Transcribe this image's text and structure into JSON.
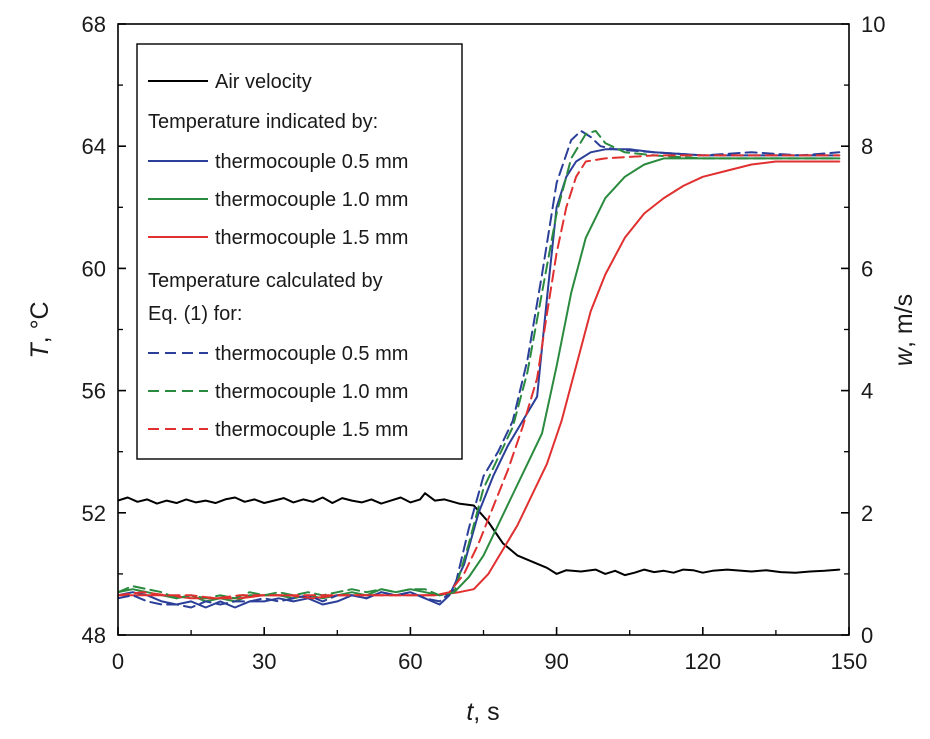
{
  "chart_data": {
    "type": "line",
    "xlabel": {
      "var": "t",
      "unit": ", s"
    },
    "ylabel_left": {
      "var": "T",
      "unit": ", °C"
    },
    "ylabel_right": {
      "var": "w",
      "unit": ", m/s"
    },
    "xlim": [
      0,
      150
    ],
    "ylim_left": [
      48,
      68
    ],
    "ylim_right": [
      0,
      10
    ],
    "x_ticks": [
      0,
      30,
      60,
      90,
      120,
      150
    ],
    "y_left_ticks": [
      48,
      52,
      56,
      60,
      64,
      68
    ],
    "y_right_ticks": [
      0,
      2,
      4,
      6,
      8,
      10
    ],
    "grid": false,
    "legend_position": "top-left",
    "legend_headers": [
      "Temperature indicated by:",
      "Temperature calculated by",
      "Eq. (1) for:"
    ],
    "series": [
      {
        "name": "Air velocity",
        "axis": "right",
        "color": "#000000",
        "dash": "solid",
        "points": [
          [
            0,
            2.2
          ],
          [
            2,
            2.25
          ],
          [
            4,
            2.18
          ],
          [
            6,
            2.22
          ],
          [
            8,
            2.15
          ],
          [
            10,
            2.2
          ],
          [
            12,
            2.16
          ],
          [
            14,
            2.22
          ],
          [
            16,
            2.17
          ],
          [
            18,
            2.2
          ],
          [
            20,
            2.16
          ],
          [
            22,
            2.22
          ],
          [
            24,
            2.25
          ],
          [
            26,
            2.18
          ],
          [
            28,
            2.22
          ],
          [
            30,
            2.16
          ],
          [
            32,
            2.2
          ],
          [
            34,
            2.24
          ],
          [
            36,
            2.17
          ],
          [
            38,
            2.22
          ],
          [
            40,
            2.18
          ],
          [
            42,
            2.25
          ],
          [
            44,
            2.16
          ],
          [
            46,
            2.24
          ],
          [
            48,
            2.2
          ],
          [
            50,
            2.17
          ],
          [
            52,
            2.22
          ],
          [
            54,
            2.15
          ],
          [
            56,
            2.2
          ],
          [
            58,
            2.25
          ],
          [
            60,
            2.17
          ],
          [
            62,
            2.22
          ],
          [
            63,
            2.32
          ],
          [
            65,
            2.2
          ],
          [
            67,
            2.22
          ],
          [
            70,
            2.15
          ],
          [
            73,
            2.12
          ],
          [
            76,
            1.85
          ],
          [
            79,
            1.5
          ],
          [
            82,
            1.3
          ],
          [
            85,
            1.2
          ],
          [
            88,
            1.1
          ],
          [
            90,
            1.0
          ],
          [
            92,
            1.06
          ],
          [
            95,
            1.04
          ],
          [
            98,
            1.07
          ],
          [
            100,
            1.0
          ],
          [
            102,
            1.05
          ],
          [
            104,
            0.98
          ],
          [
            106,
            1.02
          ],
          [
            108,
            1.07
          ],
          [
            110,
            1.03
          ],
          [
            112,
            1.05
          ],
          [
            114,
            1.02
          ],
          [
            116,
            1.07
          ],
          [
            118,
            1.06
          ],
          [
            120,
            1.02
          ],
          [
            122,
            1.05
          ],
          [
            125,
            1.07
          ],
          [
            128,
            1.05
          ],
          [
            130,
            1.04
          ],
          [
            133,
            1.06
          ],
          [
            136,
            1.03
          ],
          [
            139,
            1.02
          ],
          [
            142,
            1.04
          ],
          [
            145,
            1.05
          ],
          [
            148,
            1.07
          ]
        ]
      },
      {
        "name": "thermocouple 0.5 mm",
        "axis": "left",
        "color": "#2b3f99",
        "dash": "solid",
        "points": [
          [
            0,
            49.3
          ],
          [
            3,
            49.4
          ],
          [
            6,
            49.3
          ],
          [
            9,
            49.1
          ],
          [
            12,
            49.0
          ],
          [
            15,
            49.1
          ],
          [
            18,
            48.9
          ],
          [
            21,
            49.1
          ],
          [
            24,
            48.9
          ],
          [
            27,
            49.1
          ],
          [
            30,
            49.1
          ],
          [
            33,
            49.2
          ],
          [
            36,
            49.1
          ],
          [
            39,
            49.2
          ],
          [
            42,
            49.0
          ],
          [
            45,
            49.1
          ],
          [
            48,
            49.3
          ],
          [
            51,
            49.2
          ],
          [
            54,
            49.4
          ],
          [
            57,
            49.3
          ],
          [
            60,
            49.4
          ],
          [
            63,
            49.2
          ],
          [
            66,
            49.0
          ],
          [
            68,
            49.3
          ],
          [
            71,
            50.3
          ],
          [
            74,
            52.0
          ],
          [
            77,
            53.2
          ],
          [
            80,
            54.2
          ],
          [
            83,
            55.0
          ],
          [
            86,
            55.8
          ],
          [
            88,
            59.0
          ],
          [
            90,
            62.0
          ],
          [
            92,
            63.0
          ],
          [
            94,
            63.5
          ],
          [
            97,
            63.8
          ],
          [
            100,
            63.9
          ],
          [
            105,
            63.9
          ],
          [
            110,
            63.8
          ],
          [
            120,
            63.7
          ],
          [
            130,
            63.7
          ],
          [
            140,
            63.7
          ],
          [
            148,
            63.7
          ]
        ]
      },
      {
        "name": "thermocouple 1.0 mm",
        "axis": "left",
        "color": "#2a8a3e",
        "dash": "solid",
        "points": [
          [
            0,
            49.4
          ],
          [
            3,
            49.5
          ],
          [
            6,
            49.4
          ],
          [
            9,
            49.3
          ],
          [
            12,
            49.2
          ],
          [
            15,
            49.3
          ],
          [
            18,
            49.1
          ],
          [
            21,
            49.2
          ],
          [
            24,
            49.1
          ],
          [
            27,
            49.3
          ],
          [
            30,
            49.3
          ],
          [
            33,
            49.3
          ],
          [
            36,
            49.2
          ],
          [
            39,
            49.3
          ],
          [
            42,
            49.2
          ],
          [
            45,
            49.3
          ],
          [
            48,
            49.4
          ],
          [
            51,
            49.3
          ],
          [
            54,
            49.5
          ],
          [
            57,
            49.4
          ],
          [
            60,
            49.5
          ],
          [
            63,
            49.4
          ],
          [
            66,
            49.3
          ],
          [
            69,
            49.4
          ],
          [
            72,
            49.9
          ],
          [
            75,
            50.6
          ],
          [
            78,
            51.6
          ],
          [
            81,
            52.6
          ],
          [
            84,
            53.6
          ],
          [
            87,
            54.6
          ],
          [
            90,
            56.8
          ],
          [
            93,
            59.2
          ],
          [
            96,
            61.0
          ],
          [
            100,
            62.3
          ],
          [
            104,
            63.0
          ],
          [
            108,
            63.4
          ],
          [
            112,
            63.6
          ],
          [
            120,
            63.6
          ],
          [
            130,
            63.6
          ],
          [
            140,
            63.6
          ],
          [
            148,
            63.6
          ]
        ]
      },
      {
        "name": "thermocouple 1.5 mm",
        "axis": "left",
        "color": "#e03030",
        "dash": "solid",
        "points": [
          [
            0,
            49.3
          ],
          [
            5,
            49.3
          ],
          [
            10,
            49.3
          ],
          [
            15,
            49.2
          ],
          [
            20,
            49.2
          ],
          [
            25,
            49.2
          ],
          [
            30,
            49.3
          ],
          [
            35,
            49.3
          ],
          [
            40,
            49.2
          ],
          [
            45,
            49.3
          ],
          [
            50,
            49.3
          ],
          [
            55,
            49.3
          ],
          [
            60,
            49.3
          ],
          [
            65,
            49.3
          ],
          [
            70,
            49.4
          ],
          [
            73,
            49.5
          ],
          [
            76,
            50.0
          ],
          [
            79,
            50.8
          ],
          [
            82,
            51.6
          ],
          [
            85,
            52.6
          ],
          [
            88,
            53.6
          ],
          [
            91,
            55.0
          ],
          [
            94,
            56.8
          ],
          [
            97,
            58.6
          ],
          [
            100,
            59.8
          ],
          [
            104,
            61.0
          ],
          [
            108,
            61.8
          ],
          [
            112,
            62.3
          ],
          [
            116,
            62.7
          ],
          [
            120,
            63.0
          ],
          [
            125,
            63.2
          ],
          [
            130,
            63.4
          ],
          [
            135,
            63.5
          ],
          [
            140,
            63.5
          ],
          [
            148,
            63.5
          ]
        ]
      },
      {
        "name": "thermocouple 0.5 mm",
        "axis": "left",
        "color": "#2b3f99",
        "dash": "dashed",
        "points": [
          [
            0,
            49.2
          ],
          [
            3,
            49.3
          ],
          [
            6,
            49.1
          ],
          [
            9,
            49.0
          ],
          [
            12,
            49.0
          ],
          [
            15,
            48.9
          ],
          [
            18,
            49.1
          ],
          [
            21,
            49.0
          ],
          [
            24,
            49.1
          ],
          [
            27,
            49.1
          ],
          [
            30,
            49.2
          ],
          [
            33,
            49.1
          ],
          [
            36,
            49.2
          ],
          [
            39,
            49.3
          ],
          [
            42,
            49.1
          ],
          [
            45,
            49.3
          ],
          [
            48,
            49.3
          ],
          [
            51,
            49.2
          ],
          [
            54,
            49.4
          ],
          [
            57,
            49.3
          ],
          [
            60,
            49.4
          ],
          [
            63,
            49.2
          ],
          [
            66,
            49.1
          ],
          [
            69,
            49.5
          ],
          [
            72,
            51.5
          ],
          [
            75,
            53.2
          ],
          [
            78,
            54.0
          ],
          [
            81,
            55.0
          ],
          [
            84,
            57.0
          ],
          [
            87,
            59.8
          ],
          [
            90,
            62.8
          ],
          [
            93,
            64.2
          ],
          [
            95,
            64.5
          ],
          [
            97,
            64.3
          ],
          [
            99,
            64.0
          ],
          [
            102,
            63.9
          ],
          [
            110,
            63.8
          ],
          [
            120,
            63.7
          ],
          [
            130,
            63.8
          ],
          [
            140,
            63.7
          ],
          [
            148,
            63.8
          ]
        ]
      },
      {
        "name": "thermocouple 1.0 mm",
        "axis": "left",
        "color": "#2a8a3e",
        "dash": "dashed",
        "points": [
          [
            0,
            49.4
          ],
          [
            3,
            49.6
          ],
          [
            6,
            49.5
          ],
          [
            9,
            49.4
          ],
          [
            12,
            49.2
          ],
          [
            15,
            49.3
          ],
          [
            18,
            49.2
          ],
          [
            21,
            49.3
          ],
          [
            24,
            49.2
          ],
          [
            27,
            49.4
          ],
          [
            30,
            49.3
          ],
          [
            33,
            49.4
          ],
          [
            36,
            49.3
          ],
          [
            39,
            49.4
          ],
          [
            42,
            49.3
          ],
          [
            45,
            49.4
          ],
          [
            48,
            49.5
          ],
          [
            51,
            49.4
          ],
          [
            54,
            49.5
          ],
          [
            57,
            49.4
          ],
          [
            60,
            49.5
          ],
          [
            63,
            49.5
          ],
          [
            66,
            49.3
          ],
          [
            69,
            49.4
          ],
          [
            72,
            51.0
          ],
          [
            75,
            52.8
          ],
          [
            78,
            53.8
          ],
          [
            81,
            54.8
          ],
          [
            84,
            56.6
          ],
          [
            87,
            59.2
          ],
          [
            90,
            61.8
          ],
          [
            93,
            63.6
          ],
          [
            96,
            64.4
          ],
          [
            98,
            64.5
          ],
          [
            100,
            64.1
          ],
          [
            104,
            63.8
          ],
          [
            110,
            63.7
          ],
          [
            120,
            63.6
          ],
          [
            130,
            63.6
          ],
          [
            140,
            63.6
          ],
          [
            148,
            63.6
          ]
        ]
      },
      {
        "name": "thermocouple 1.5 mm",
        "axis": "left",
        "color": "#e03030",
        "dash": "dashed",
        "points": [
          [
            0,
            49.3
          ],
          [
            5,
            49.4
          ],
          [
            10,
            49.3
          ],
          [
            15,
            49.3
          ],
          [
            20,
            49.2
          ],
          [
            25,
            49.3
          ],
          [
            30,
            49.3
          ],
          [
            35,
            49.3
          ],
          [
            40,
            49.3
          ],
          [
            45,
            49.3
          ],
          [
            50,
            49.3
          ],
          [
            55,
            49.3
          ],
          [
            60,
            49.3
          ],
          [
            65,
            49.3
          ],
          [
            68,
            49.4
          ],
          [
            71,
            50.0
          ],
          [
            74,
            51.0
          ],
          [
            77,
            52.2
          ],
          [
            80,
            53.4
          ],
          [
            83,
            54.8
          ],
          [
            86,
            56.4
          ],
          [
            88,
            58.5
          ],
          [
            90,
            60.5
          ],
          [
            92,
            62.0
          ],
          [
            94,
            63.0
          ],
          [
            96,
            63.5
          ],
          [
            100,
            63.6
          ],
          [
            110,
            63.7
          ],
          [
            120,
            63.7
          ],
          [
            130,
            63.7
          ],
          [
            140,
            63.7
          ],
          [
            148,
            63.7
          ]
        ]
      }
    ]
  }
}
